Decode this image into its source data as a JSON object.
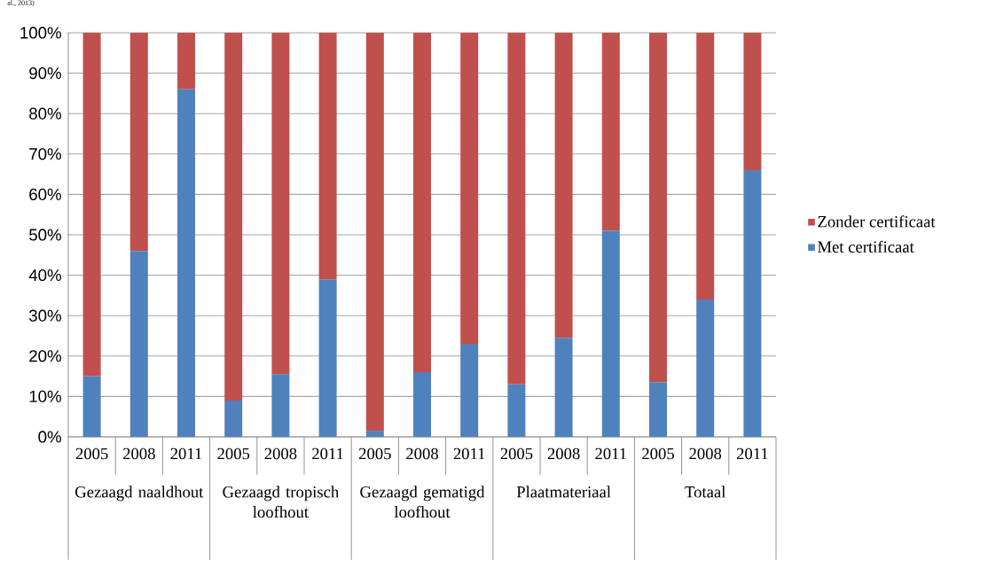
{
  "chart_data": {
    "type": "bar",
    "stacked": true,
    "categories": [
      "2005",
      "2008",
      "2011",
      "2005",
      "2008",
      "2011",
      "2005",
      "2008",
      "2011",
      "2005",
      "2008",
      "2011",
      "2005",
      "2008",
      "2011"
    ],
    "series": [
      {
        "name": "Met certificaat",
        "color": "#4f81bd",
        "values": [
          15,
          46,
          86,
          9,
          15.5,
          39,
          1.5,
          16,
          23,
          13,
          24.5,
          51,
          13.5,
          34,
          66
        ]
      },
      {
        "name": "Zonder certificaat",
        "color": "#c0504d",
        "values": [
          85,
          54,
          14,
          91,
          84.5,
          61,
          98.5,
          84,
          77,
          87,
          75.5,
          49,
          86.5,
          66,
          34
        ]
      }
    ],
    "ylim": [
      0,
      100
    ],
    "yticks": [
      {
        "value": 0,
        "label": "0%"
      },
      {
        "value": 10,
        "label": "10%"
      },
      {
        "value": 20,
        "label": "20%"
      },
      {
        "value": 30,
        "label": "30%"
      },
      {
        "value": 40,
        "label": "40%"
      },
      {
        "value": 50,
        "label": "50%"
      },
      {
        "value": 60,
        "label": "60%"
      },
      {
        "value": 70,
        "label": "70%"
      },
      {
        "value": 80,
        "label": "80%"
      },
      {
        "value": 90,
        "label": "90%"
      },
      {
        "value": 100,
        "label": "100%"
      }
    ],
    "grid": "y",
    "legend": "right",
    "annotations": [
      "al., 2013)",
      "Gezaagd naaldhout",
      "Gezaagd tropisch loofhout",
      "Gezaagd gematigd loofhout",
      "Plaatmateriaal",
      "Totaal"
    ]
  }
}
